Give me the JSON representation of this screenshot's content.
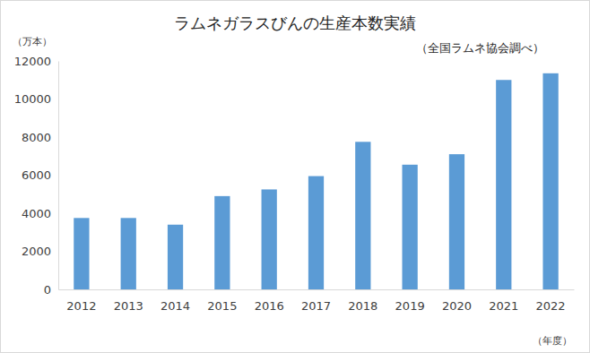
{
  "chart_data": {
    "type": "bar",
    "title": "ラムネガラスびんの生産本数実績",
    "subtitle": "（全国ラムネ協会調べ）",
    "y_label": "（万本）",
    "x_label": "（年度）",
    "categories": [
      "2012",
      "2013",
      "2014",
      "2015",
      "2016",
      "2017",
      "2018",
      "2019",
      "2020",
      "2021",
      "2022"
    ],
    "values": [
      3750,
      3750,
      3400,
      4900,
      5250,
      5950,
      7750,
      6550,
      7100,
      11000,
      11350
    ],
    "color": "#5b9bd5",
    "ylim": [
      0,
      12000
    ],
    "yticks": [
      0,
      2000,
      4000,
      6000,
      8000,
      10000,
      12000
    ],
    "grid": false
  }
}
